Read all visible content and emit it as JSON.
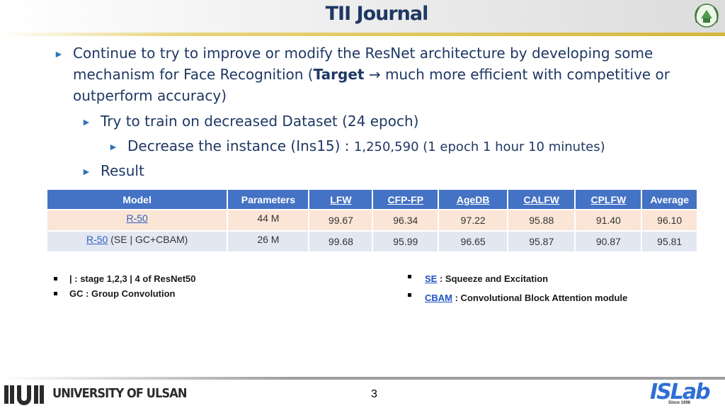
{
  "header": {
    "title": "TII Journal"
  },
  "bullets": {
    "b1_before": "Continue to try to improve or modify the ResNet architecture by developing some",
    "b1_line2_before": "mechanism for Face Recognition (",
    "b1_bold": "Target",
    "b1_after": " → much more efficient with competitive or",
    "b1_line3": "outperform accuracy)",
    "b2": "Try to train on decreased Dataset (24 epoch)",
    "b3_main": "Decrease the instance (Ins15) : ",
    "b3_small": "1,250,590 (1 epoch 1 hour 10 minutes)",
    "b4": "Result"
  },
  "table": {
    "headers": [
      "Model",
      "Parameters",
      "LFW",
      "CFP-FP",
      "AgeDB",
      "CALFW",
      "CPLFW",
      "Average"
    ],
    "rows": [
      {
        "model_link": "R-50",
        "model_rest": "",
        "values": [
          "44 M",
          "99.67",
          "96.34",
          "97.22",
          "95.88",
          "91.40",
          "96.10"
        ]
      },
      {
        "model_link": "R-50",
        "model_rest": " (SE | GC+CBAM)",
        "values": [
          "26 M",
          "99.68",
          "95.99",
          "96.65",
          "95.87",
          "90.87",
          "95.81"
        ]
      }
    ]
  },
  "notes": {
    "left1": "| : stage 1,2,3 | 4 of ResNet50",
    "left2": "GC : Group Convolution",
    "right1_key": "SE",
    "right1_rest": " : Squeeze and Excitation",
    "right2_key": "CBAM",
    "right2_rest": " : Convolutional Block Attention module"
  },
  "footer": {
    "university": "UNIVERSITY OF ULSAN",
    "page_number": "3",
    "lab_logo": "ISLab",
    "lab_since": "Since 1998"
  },
  "colors": {
    "title": "#1f3864",
    "accent_gold": "#d4b73a",
    "table_header": "#4472c4",
    "row1": "#fbe5d6",
    "row2": "#e3e7f1"
  },
  "icons": [
    "emblem-icon",
    "bullet-arrow-icon",
    "square-bullet-icon",
    "ulsan-logo-icon"
  ]
}
